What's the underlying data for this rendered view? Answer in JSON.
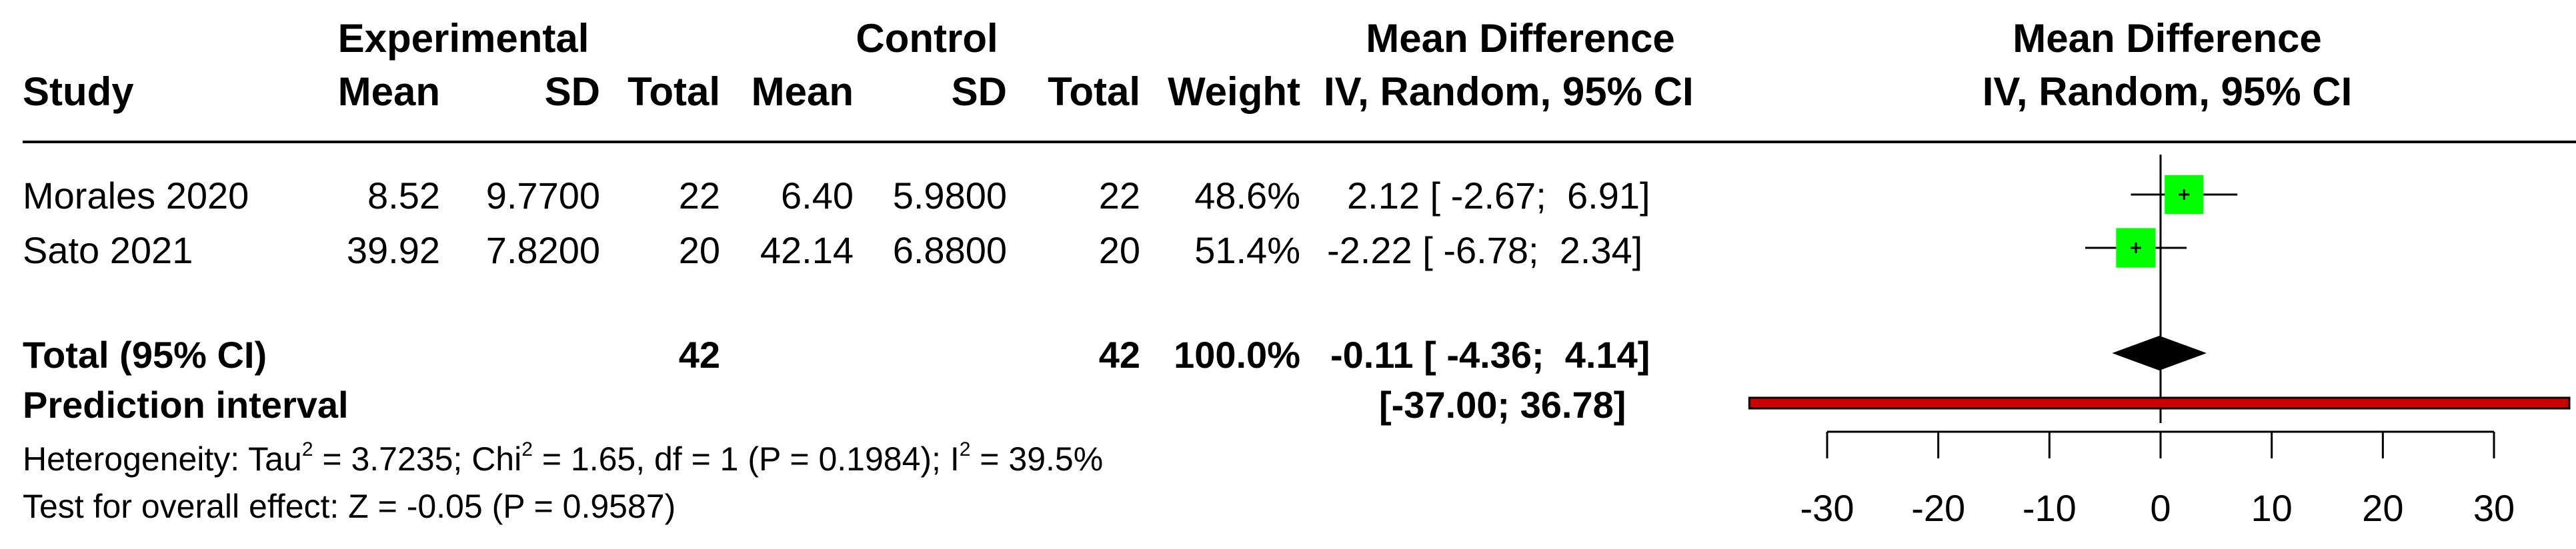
{
  "chart_data": {
    "type": "forest",
    "headers": {
      "experimental_group": "Experimental",
      "control_group": "Control",
      "md_group": "Mean Difference",
      "study": "Study",
      "exp_mean": "Mean",
      "exp_sd": "SD",
      "exp_total": "Total",
      "ctl_mean": "Mean",
      "ctl_sd": "SD",
      "ctl_total": "Total",
      "weight": "Weight",
      "md_ci": "IV, Random, 95% CI",
      "plot_title": "Mean Difference",
      "plot_subtitle": "IV, Random, 95% CI"
    },
    "studies": [
      {
        "name": "Morales  2020",
        "exp_mean": "8.52",
        "exp_sd": "9.7700",
        "exp_total": "22",
        "ctl_mean": "6.40",
        "ctl_sd": "5.9800",
        "ctl_total": "22",
        "weight": "48.6%",
        "ci_text": "2.12 [ -2.67;  6.91]",
        "md": 2.12,
        "lower": -2.67,
        "upper": 6.91,
        "weight_value": 48.6
      },
      {
        "name": "Sato  2021",
        "exp_mean": "39.92",
        "exp_sd": "7.8200",
        "exp_total": "20",
        "ctl_mean": "42.14",
        "ctl_sd": "6.8800",
        "ctl_total": "20",
        "weight": "51.4%",
        "ci_text": "-2.22 [ -6.78;  2.34]",
        "md": -2.22,
        "lower": -6.78,
        "upper": 2.34,
        "weight_value": 51.4
      }
    ],
    "total": {
      "label": "Total (95% CI)",
      "exp_total": "42",
      "ctl_total": "42",
      "weight": "100.0%",
      "ci_text": "-0.11 [ -4.36;  4.14]",
      "md": -0.11,
      "lower": -4.36,
      "upper": 4.14
    },
    "prediction": {
      "label": "Prediction interval",
      "ci_text": "[-37.00; 36.78]",
      "lower": -37.0,
      "upper": 36.78
    },
    "heterogeneity": {
      "prefix": "Heterogeneity: Tau",
      "tau_sup": "2",
      "mid1": " = 3.7235; Chi",
      "chi_sup": "2",
      "mid2": " = 1.65, df = 1 (P = 0.1984); I",
      "i_sup": "2",
      "end": " = 39.5%"
    },
    "overall_effect": "Test for overall effect: Z = -0.05 (P = 0.9587)",
    "x_axis": {
      "range": [
        -30,
        30
      ],
      "ticks": [
        -30,
        -20,
        -10,
        0,
        10,
        20,
        30
      ],
      "tick_labels": [
        "-30",
        "-20",
        "-10",
        "0",
        "10",
        "20",
        "30"
      ]
    },
    "colors": {
      "study_square": "#00ff00",
      "diamond": "#000000",
      "prediction_bar": "#cc0000"
    }
  }
}
